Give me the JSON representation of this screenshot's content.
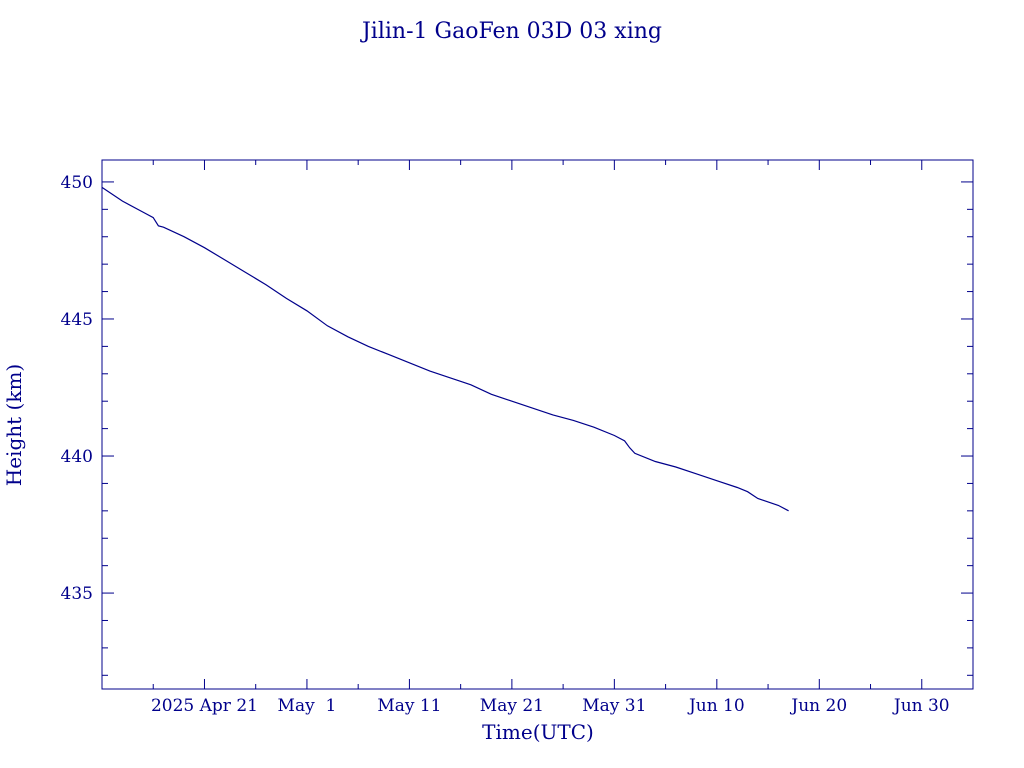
{
  "chart_data": {
    "type": "line",
    "title": "Jilin-1 GaoFen 03D 03 xing",
    "xlabel": "Time(UTC)",
    "ylabel": "Height (km)",
    "color": "#00008b",
    "xlim": [
      "2025-04-11",
      "2025-07-05"
    ],
    "ylim": [
      431.5,
      450.8
    ],
    "x_ticks": [
      {
        "date": "2025-04-21",
        "label": "2025 Apr 21"
      },
      {
        "date": "2025-05-01",
        "label": "May  1"
      },
      {
        "date": "2025-05-11",
        "label": "May 11"
      },
      {
        "date": "2025-05-21",
        "label": "May 21"
      },
      {
        "date": "2025-05-31",
        "label": "May 31"
      },
      {
        "date": "2025-06-10",
        "label": "Jun 10"
      },
      {
        "date": "2025-06-20",
        "label": "Jun 20"
      },
      {
        "date": "2025-06-30",
        "label": "Jun 30"
      }
    ],
    "x_minor_dates": [
      "2025-04-16",
      "2025-04-26",
      "2025-05-06",
      "2025-05-16",
      "2025-05-26",
      "2025-06-05",
      "2025-06-15",
      "2025-06-25",
      "2025-07-05"
    ],
    "y_ticks": [
      435,
      440,
      445,
      450
    ],
    "y_minor_ticks": [
      432,
      433,
      434,
      436,
      437,
      438,
      439,
      441,
      442,
      443,
      444,
      446,
      447,
      448,
      449
    ],
    "grid": false,
    "series": [
      {
        "x": [
          "2025-04-11",
          "2025-04-13",
          "2025-04-15",
          "2025-04-16",
          "2025-04-16 12:00",
          "2025-04-17",
          "2025-04-19",
          "2025-04-21",
          "2025-04-23",
          "2025-04-25",
          "2025-04-27",
          "2025-04-29",
          "2025-05-01",
          "2025-05-03",
          "2025-05-05",
          "2025-05-07",
          "2025-05-09",
          "2025-05-11",
          "2025-05-13",
          "2025-05-15",
          "2025-05-17",
          "2025-05-19",
          "2025-05-21",
          "2025-05-23",
          "2025-05-25",
          "2025-05-27",
          "2025-05-29",
          "2025-05-31",
          "2025-06-01",
          "2025-06-01 12:00",
          "2025-06-02",
          "2025-06-04",
          "2025-06-06",
          "2025-06-08",
          "2025-06-10",
          "2025-06-12",
          "2025-06-13",
          "2025-06-14",
          "2025-06-16",
          "2025-06-17"
        ],
        "y": [
          449.8,
          449.3,
          448.9,
          448.7,
          448.4,
          448.35,
          448.0,
          447.6,
          447.15,
          446.7,
          446.25,
          445.75,
          445.3,
          444.75,
          444.35,
          444.0,
          443.7,
          443.4,
          443.1,
          442.85,
          442.6,
          442.25,
          442.0,
          441.75,
          441.5,
          441.3,
          441.05,
          440.75,
          440.55,
          440.3,
          440.1,
          439.8,
          439.6,
          439.35,
          439.1,
          438.85,
          438.7,
          438.45,
          438.2,
          438.0
        ]
      }
    ]
  }
}
